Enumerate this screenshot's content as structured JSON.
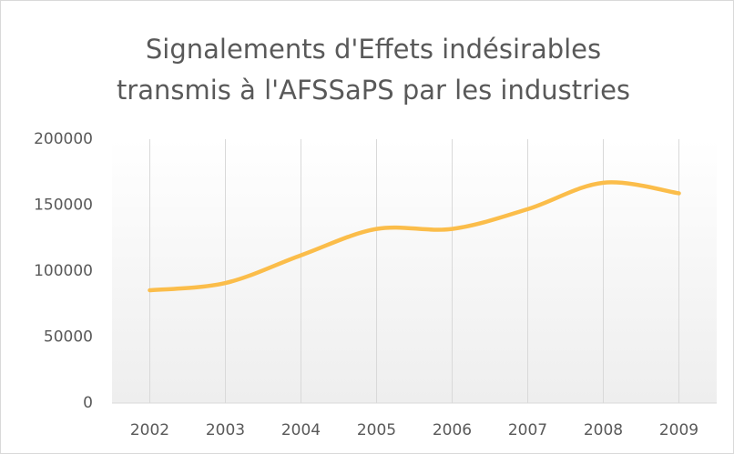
{
  "chart_data": {
    "type": "line",
    "title": [
      "Signalements d'Effets indésirables",
      "transmis à l'AFSSaPS par les industries"
    ],
    "categories": [
      "2002",
      "2003",
      "2004",
      "2005",
      "2006",
      "2007",
      "2008",
      "2009"
    ],
    "series": [
      {
        "name": "Signalements",
        "color": "#fbbd4a",
        "values": [
          85500,
          91000,
          112000,
          132000,
          132000,
          147000,
          167000,
          159000
        ]
      }
    ],
    "ylim": [
      0,
      200000
    ],
    "yticks": [
      0,
      50000,
      100000,
      150000,
      200000
    ],
    "smooth": true,
    "xgrid": true
  }
}
